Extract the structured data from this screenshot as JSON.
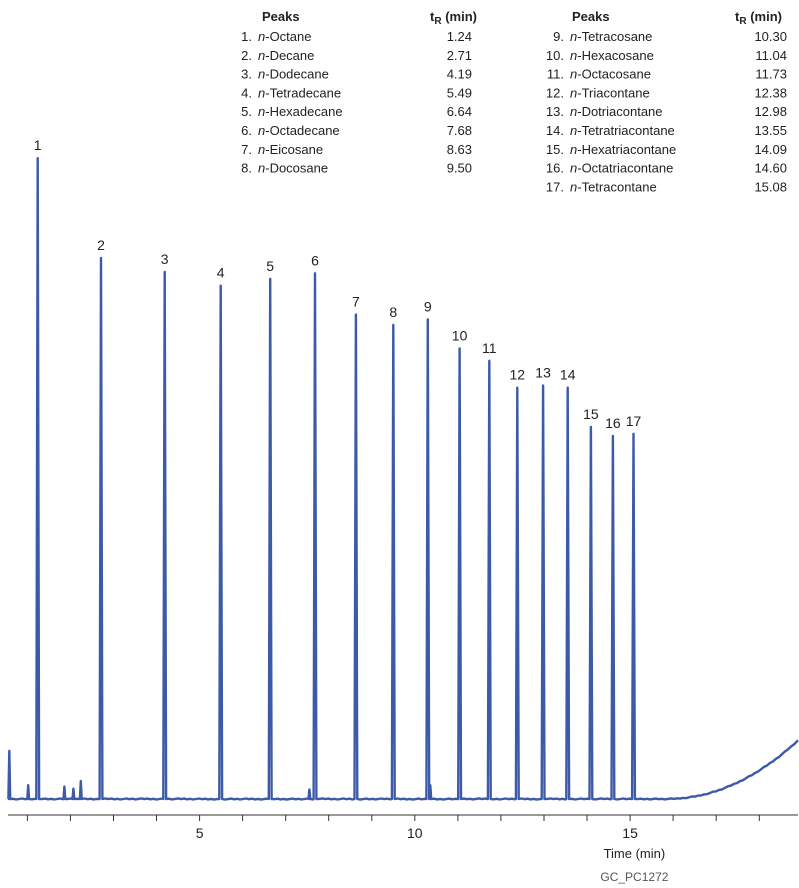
{
  "chart_data": {
    "type": "line",
    "xlabel": "Time (min)",
    "xlim": [
      0.55,
      18.9
    ],
    "xticks": [
      1,
      2,
      3,
      4,
      5,
      6,
      7,
      8,
      9,
      10,
      11,
      12,
      13,
      14,
      15,
      16,
      17,
      18
    ],
    "xtick_labels": [
      {
        "value": 5,
        "label": "5"
      },
      {
        "value": 10,
        "label": "10"
      },
      {
        "value": 15,
        "label": "15"
      }
    ],
    "ylim": [
      0,
      1
    ],
    "peaks": [
      {
        "label": "1",
        "x": 1.24,
        "height": 0.93
      },
      {
        "label": "2",
        "x": 2.71,
        "height": 0.785
      },
      {
        "label": "3",
        "x": 4.19,
        "height": 0.765
      },
      {
        "label": "4",
        "x": 5.49,
        "height": 0.745
      },
      {
        "label": "5",
        "x": 6.64,
        "height": 0.755
      },
      {
        "label": "6",
        "x": 7.68,
        "height": 0.763
      },
      {
        "label": "7",
        "x": 8.63,
        "height": 0.703
      },
      {
        "label": "8",
        "x": 9.5,
        "height": 0.688
      },
      {
        "label": "9",
        "x": 10.3,
        "height": 0.696
      },
      {
        "label": "10",
        "x": 11.04,
        "height": 0.654
      },
      {
        "label": "11",
        "x": 11.73,
        "height": 0.636
      },
      {
        "label": "12",
        "x": 12.38,
        "height": 0.597
      },
      {
        "label": "13",
        "x": 12.98,
        "height": 0.6
      },
      {
        "label": "14",
        "x": 13.55,
        "height": 0.597
      },
      {
        "label": "15",
        "x": 14.09,
        "height": 0.54
      },
      {
        "label": "16",
        "x": 14.6,
        "height": 0.527
      },
      {
        "label": "17",
        "x": 15.08,
        "height": 0.53
      }
    ],
    "legend": {
      "header_peaks": "Peaks",
      "header_tr": "t",
      "header_tr_sub": "R",
      "header_tr_unit": " (min)",
      "columns": [
        [
          {
            "num": "1.",
            "prefix": "n",
            "name": "-Octane",
            "tr": "1.24"
          },
          {
            "num": "2.",
            "prefix": "n",
            "name": "-Decane",
            "tr": "2.71"
          },
          {
            "num": "3.",
            "prefix": "n",
            "name": "-Dodecane",
            "tr": "4.19"
          },
          {
            "num": "4.",
            "prefix": "n",
            "name": "-Tetradecane",
            "tr": "5.49"
          },
          {
            "num": "5.",
            "prefix": "n",
            "name": "-Hexadecane",
            "tr": "6.64"
          },
          {
            "num": "6.",
            "prefix": "n",
            "name": "-Octadecane",
            "tr": "7.68"
          },
          {
            "num": "7.",
            "prefix": "n",
            "name": "-Eicosane",
            "tr": "8.63"
          },
          {
            "num": "8.",
            "prefix": "n",
            "name": "-Docosane",
            "tr": "9.50"
          }
        ],
        [
          {
            "num": "9.",
            "prefix": "n",
            "name": "-Tetracosane",
            "tr": "10.30"
          },
          {
            "num": "10.",
            "prefix": "n",
            "name": "-Hexacosane",
            "tr": "11.04"
          },
          {
            "num": "11.",
            "prefix": "n",
            "name": "-Octacosane",
            "tr": "11.73"
          },
          {
            "num": "12.",
            "prefix": "n",
            "name": "-Triacontane",
            "tr": "12.38"
          },
          {
            "num": "13.",
            "prefix": "n",
            "name": "-Dotriacontane",
            "tr": "12.98"
          },
          {
            "num": "14.",
            "prefix": "n",
            "name": "-Tetratriacontane",
            "tr": "13.55"
          },
          {
            "num": "15.",
            "prefix": "n",
            "name": "-Hexatriacontane",
            "tr": "14.09"
          },
          {
            "num": "16.",
            "prefix": "n",
            "name": "-Octatriacontane",
            "tr": "14.60"
          },
          {
            "num": "17.",
            "prefix": "n",
            "name": "-Tetracontane",
            "tr": "15.08"
          }
        ]
      ]
    },
    "colors": {
      "trace": "#3d5aa8",
      "axis": "#333333"
    }
  },
  "source_label": "GC_PC1272"
}
